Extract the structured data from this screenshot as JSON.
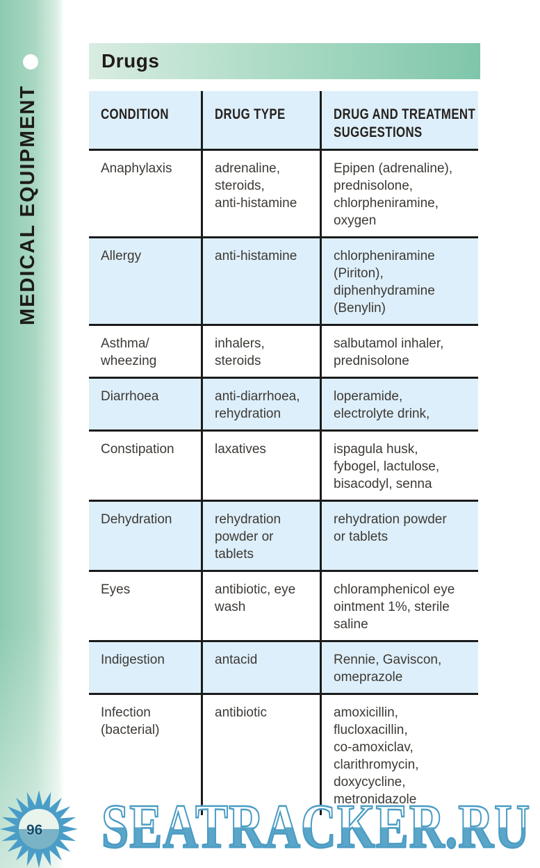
{
  "page": {
    "section_label": "MEDICAL EQUIPMENT",
    "title": "Drugs",
    "page_number": "96"
  },
  "table": {
    "headers": [
      "CONDITION",
      "DRUG TYPE",
      "DRUG AND TREATMENT\nSUGGESTIONS"
    ],
    "rows": [
      {
        "condition": "Anaphylaxis",
        "drug_type": "adrenaline,\nsteroids,\nanti-histamine",
        "suggestions": "Epipen (adrenaline),\nprednisolone,\nchlorpheniramine,\noxygen"
      },
      {
        "condition": "Allergy",
        "drug_type": "anti-histamine",
        "suggestions": "chlorpheniramine\n(Piriton),\ndiphenhydramine\n(Benylin)"
      },
      {
        "condition": "Asthma/\nwheezing",
        "drug_type": "inhalers,\nsteroids",
        "suggestions": "salbutamol inhaler,\nprednisolone"
      },
      {
        "condition": "Diarrhoea",
        "drug_type": "anti-diarrhoea,\nrehydration",
        "suggestions": "loperamide,\nelectrolyte drink,"
      },
      {
        "condition": "Constipation",
        "drug_type": "laxatives",
        "suggestions": "ispagula husk,\nfybogel, lactulose,\nbisacodyl, senna"
      },
      {
        "condition": "Dehydration",
        "drug_type": "rehydration\npowder or\ntablets",
        "suggestions": "rehydration powder\nor tablets"
      },
      {
        "condition": "Eyes",
        "drug_type": "antibiotic, eye\nwash",
        "suggestions": "chloramphenicol eye\nointment 1%, sterile\nsaline"
      },
      {
        "condition": "Indigestion",
        "drug_type": "antacid",
        "suggestions": "Rennie, Gaviscon,\nomeprazole"
      },
      {
        "condition": "Infection\n(bacterial)",
        "drug_type": "antibiotic",
        "suggestions": "amoxicillin,\nflucloxacillin,\nco-amoxiclav,\nclarithromycin,\ndoxycycline,\nmetronidazole"
      }
    ]
  },
  "watermark": {
    "text": "SEATRACKER.RU"
  },
  "colors": {
    "banner_gradient_start": "#d9ece2",
    "banner_gradient_end": "#7fc6ab",
    "sidebar_teal": "#8ccab0",
    "row_highlight_blue": "#ddeffa",
    "table_border_black": "#1b1b1b",
    "body_text": "#3d3935",
    "watermark_blue": "#4a9cc4",
    "page_number_blue": "#124d6b"
  }
}
